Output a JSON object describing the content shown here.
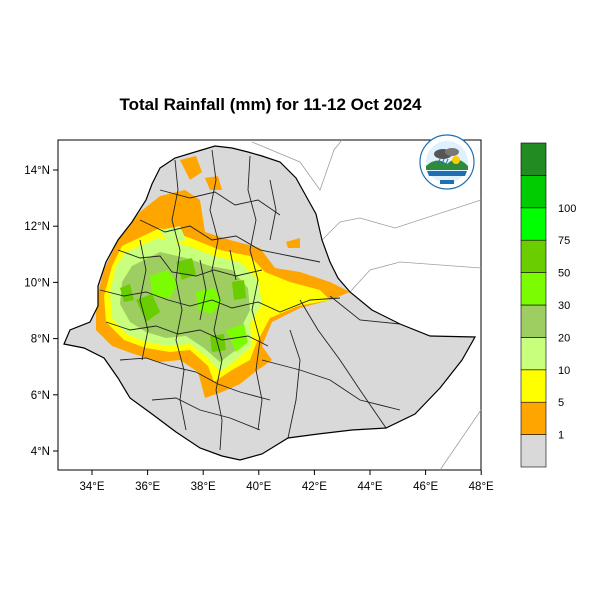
{
  "title": "Total Rainfall (mm) for 11-12 Oct 2024",
  "axes": {
    "x_ticks": [
      "34°E",
      "36°E",
      "38°E",
      "40°E",
      "42°E",
      "44°E",
      "46°E",
      "48°E"
    ],
    "y_ticks": [
      "14°N",
      "12°N",
      "10°N",
      "8°N",
      "6°N",
      "4°N"
    ]
  },
  "legend": {
    "colors": [
      "#d9d9d9",
      "#ffa500",
      "#ffff00",
      "#c8ff7d",
      "#9ecd62",
      "#7cfc00",
      "#6acd00",
      "#00ff00",
      "#00cd00",
      "#228b22"
    ],
    "labels": [
      "1",
      "5",
      "10",
      "20",
      "30",
      "50",
      "75",
      "100"
    ]
  },
  "logo": {
    "icon": "ethiopian-meteorology-institute-logo"
  }
}
